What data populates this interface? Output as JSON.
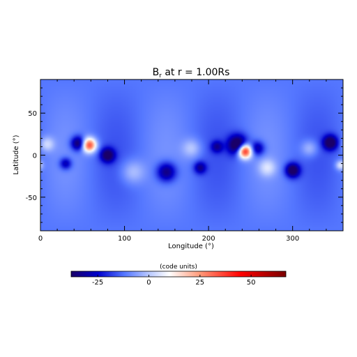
{
  "chart_data": {
    "type": "heatmap",
    "title_main": "B",
    "title_sub": "r",
    "title_rest": " at r = 1.00Rs",
    "xlabel": "Longitude (°)",
    "ylabel": "Latitude (°)",
    "xlim": [
      0,
      360
    ],
    "ylim": [
      -90,
      90
    ],
    "x_ticks": [
      0,
      100,
      200,
      300
    ],
    "y_ticks": [
      -50,
      0,
      50
    ],
    "background_value": -12,
    "features": [
      {
        "lon": 8,
        "lat": 13,
        "sigma": 6,
        "value": 14
      },
      {
        "lon": 45,
        "lat": 14,
        "sigma": 6,
        "value": -30
      },
      {
        "lon": 58,
        "lat": 12,
        "sigma": 6,
        "value": 48
      },
      {
        "lon": 80,
        "lat": 0,
        "sigma": 6,
        "value": -28
      },
      {
        "lon": 110,
        "lat": -20,
        "sigma": 10,
        "value": 12
      },
      {
        "lon": 150,
        "lat": -20,
        "sigma": 8,
        "value": -26
      },
      {
        "lon": 180,
        "lat": 8,
        "sigma": 8,
        "value": 12
      },
      {
        "lon": 235,
        "lat": 12,
        "sigma": 8,
        "value": -38
      },
      {
        "lon": 243,
        "lat": 5,
        "sigma": 6,
        "value": 62
      },
      {
        "lon": 258,
        "lat": 8,
        "sigma": 6,
        "value": -22
      },
      {
        "lon": 270,
        "lat": -15,
        "sigma": 7,
        "value": 14
      },
      {
        "lon": 300,
        "lat": -18,
        "sigma": 6,
        "value": -32
      },
      {
        "lon": 320,
        "lat": 8,
        "sigma": 7,
        "value": 12
      },
      {
        "lon": 345,
        "lat": 15,
        "sigma": 6,
        "value": -32
      },
      {
        "lon": 357,
        "lat": -12,
        "sigma": 4,
        "value": 18
      },
      {
        "lon": 30,
        "lat": -10,
        "sigma": 5,
        "value": -20
      },
      {
        "lon": 190,
        "lat": -15,
        "sigma": 5,
        "value": -20
      },
      {
        "lon": 210,
        "lat": 10,
        "sigma": 5,
        "value": -18
      }
    ]
  },
  "colorbar": {
    "label": "(code units)",
    "range": [
      -38,
      67
    ],
    "ticks": [
      -25,
      0,
      25,
      50
    ],
    "stops": [
      {
        "v": -38,
        "color": "#1a0068"
      },
      {
        "v": -25,
        "color": "#0000cc"
      },
      {
        "v": -12,
        "color": "#5577ff"
      },
      {
        "v": 0,
        "color": "#b8c8ff"
      },
      {
        "v": 10,
        "color": "#ffffff"
      },
      {
        "v": 25,
        "color": "#ff9a7a"
      },
      {
        "v": 45,
        "color": "#ff0000"
      },
      {
        "v": 67,
        "color": "#7a0000"
      }
    ]
  }
}
